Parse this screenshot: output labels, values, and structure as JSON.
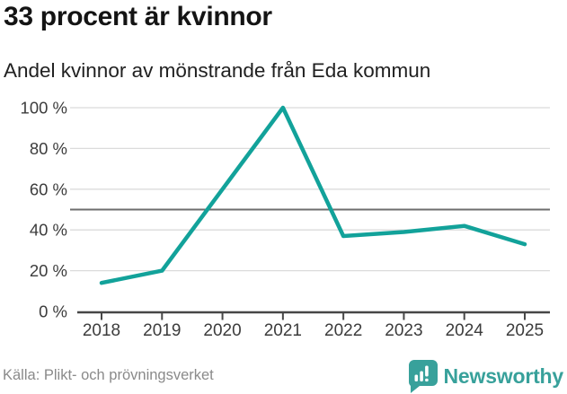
{
  "chart_data": {
    "type": "line",
    "title": "33 procent är kvinnor",
    "subtitle": "Andel kvinnor av mönstrande från Eda kommun",
    "x": [
      2018,
      2019,
      2020,
      2021,
      2022,
      2023,
      2024,
      2025
    ],
    "series": [
      {
        "name": "Andel kvinnor av mönstrande",
        "values": [
          14,
          20,
          60,
          100,
          37,
          39,
          42,
          33
        ]
      }
    ],
    "xlabel": "",
    "ylabel": "",
    "ylim": [
      0,
      100
    ],
    "yticks": [
      0,
      20,
      40,
      60,
      80,
      100
    ],
    "ytick_suffix": " %",
    "reference_line": 50,
    "grid": true,
    "legend": false
  },
  "footer": {
    "source": "Källa: Plikt- och prövningsverket",
    "brand": "Newsworthy"
  },
  "icons": {
    "brand_icon": "newsworthy-speech-bubble-bar-chart-icon"
  },
  "colors": {
    "line": "#12A29A",
    "grid": "#DBDBDB",
    "reference": "#6E6E6E",
    "axis": "#474747",
    "title_text": "#141414",
    "subtitle_text": "#212121",
    "tick_text": "#3C3C3C",
    "source_text": "#8A8A8A",
    "brand": "#38A19B",
    "background": "#FFFFFF"
  }
}
